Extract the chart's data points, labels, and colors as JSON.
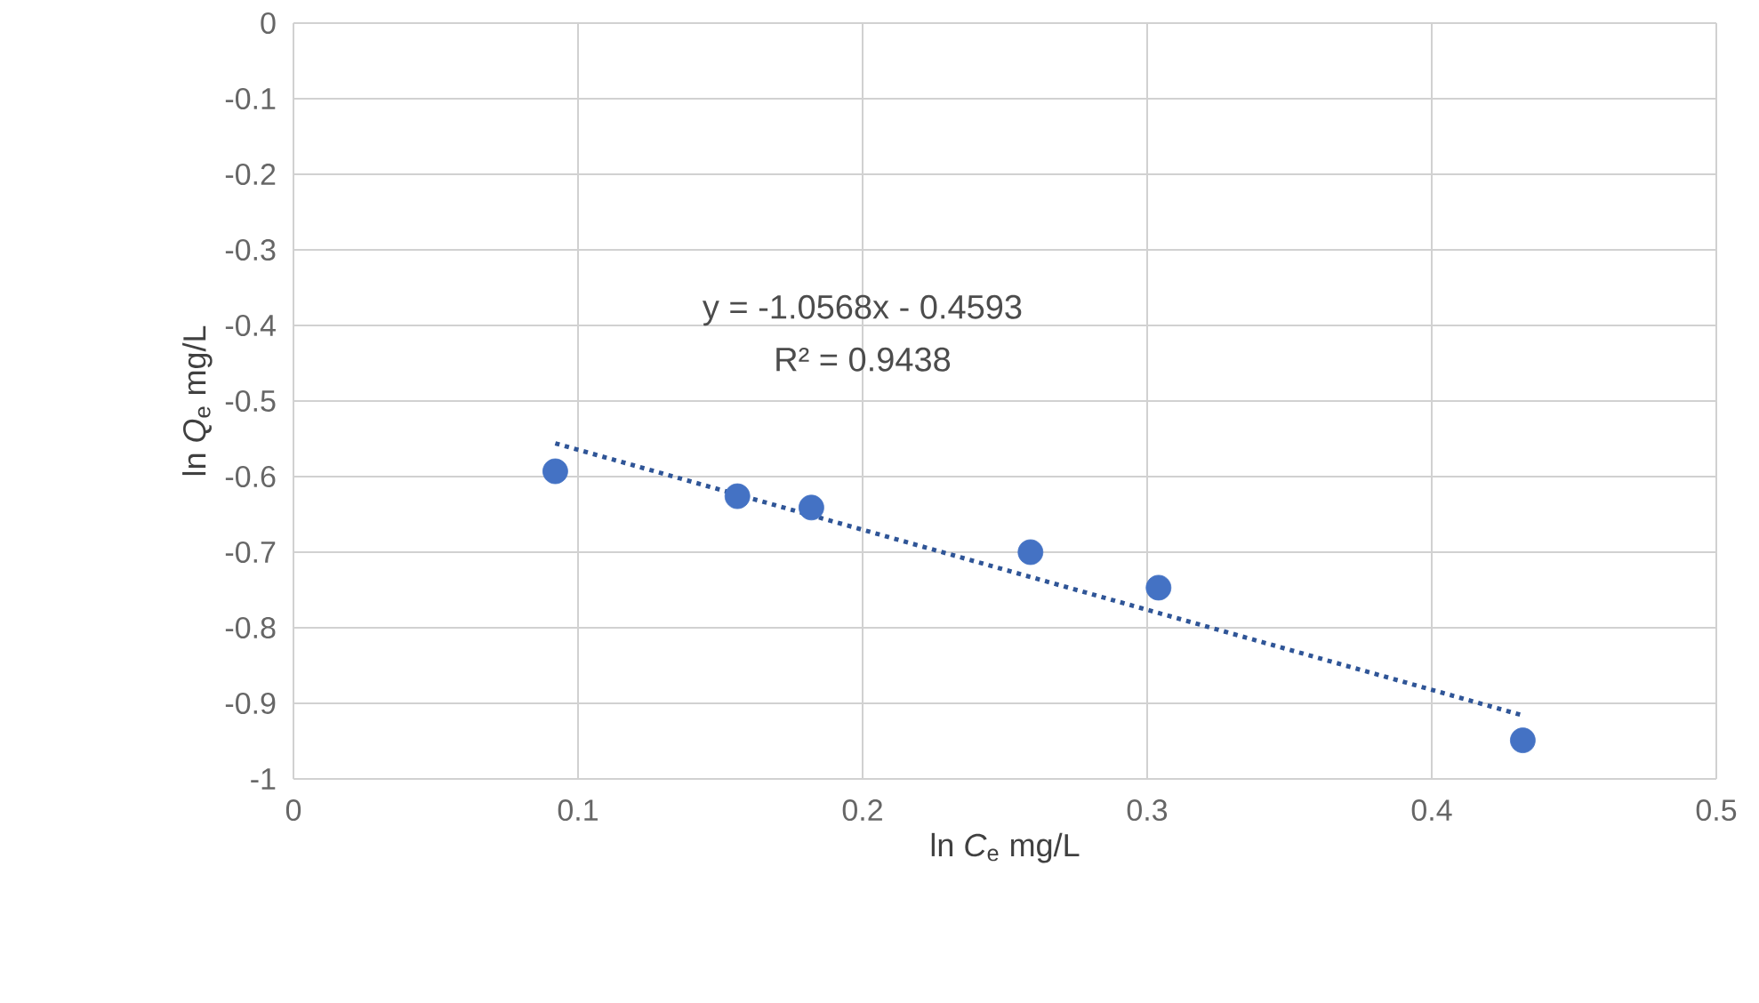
{
  "chart_data": {
    "type": "scatter",
    "xlabel": "ln *C*$_{e}$ mg/L",
    "ylabel": "ln *Q*$_{e}$ mg/L",
    "annotations": [
      "y = -1.0568x - 0.4593",
      "R² = 0.9438"
    ],
    "series": [
      {
        "color": "#4472c4",
        "marker": "circle",
        "x": [
          0.092,
          0.156,
          0.182,
          0.259,
          0.304,
          0.432
        ],
        "values": [
          -0.593,
          -0.626,
          -0.641,
          -0.7,
          -0.747,
          -0.949
        ]
      },
      {
        "type": "line",
        "color": "#2f5597",
        "line_style": "dotted",
        "marker": "none",
        "x": [
          0.092,
          0.432
        ],
        "values": [
          -0.556,
          -0.916
        ]
      }
    ],
    "xlim": [
      0,
      0.5
    ],
    "ylim": [
      -1,
      0
    ],
    "xticks": [
      0,
      0.1,
      0.2,
      0.3,
      0.4,
      0.5
    ],
    "yticks": [
      0,
      -0.1,
      -0.2,
      -0.3,
      -0.4,
      -0.5,
      -0.6,
      -0.7,
      -0.8,
      -0.9,
      -1
    ],
    "grid": true
  }
}
